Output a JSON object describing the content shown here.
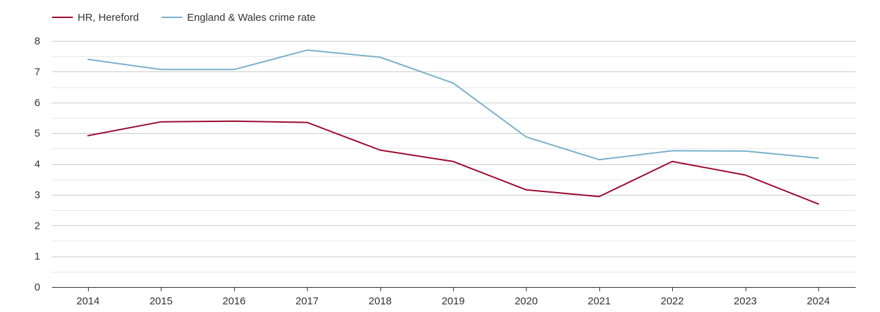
{
  "chart_data": {
    "type": "line",
    "title": "",
    "xlabel": "",
    "ylabel": "",
    "categories": [
      "2014",
      "2015",
      "2016",
      "2017",
      "2018",
      "2019",
      "2020",
      "2021",
      "2022",
      "2023",
      "2024"
    ],
    "ylim": [
      0,
      8
    ],
    "yticks": [
      0,
      1,
      2,
      3,
      4,
      5,
      6,
      7,
      8
    ],
    "grid": true,
    "legend_position": "top-left",
    "series": [
      {
        "name": "HR, Hereford",
        "color": "#9b0a30",
        "values": [
          4.92,
          5.37,
          5.39,
          5.35,
          4.45,
          4.08,
          3.16,
          2.94,
          4.08,
          3.64,
          2.7
        ]
      },
      {
        "name": "England & Wales crime rate",
        "color": "#79b0cc",
        "values": [
          7.4,
          7.07,
          7.07,
          7.7,
          7.47,
          6.63,
          4.88,
          4.14,
          4.43,
          4.42,
          4.19
        ]
      }
    ]
  }
}
